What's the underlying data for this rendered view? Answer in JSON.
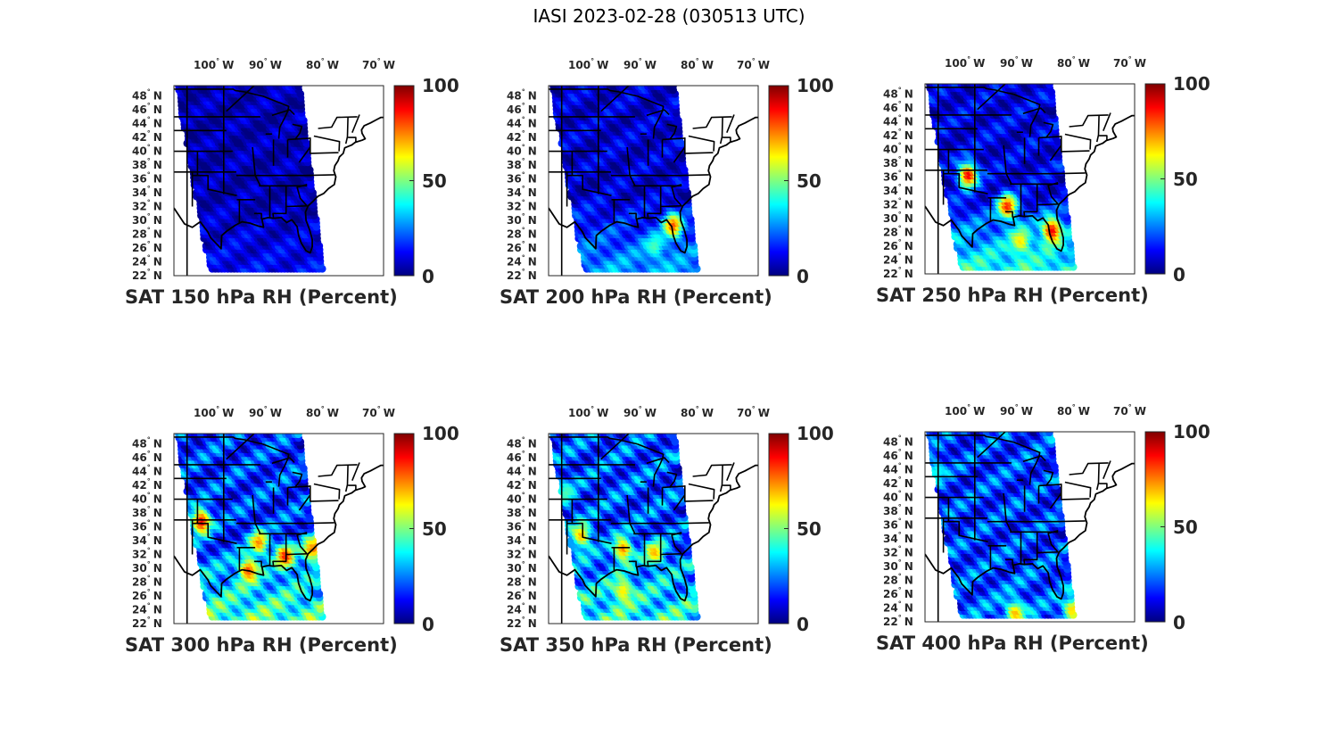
{
  "figure": {
    "title": "IASI 2023-02-28 (030513 UTC)"
  },
  "axes": {
    "lon_ticks": [
      "100",
      "90",
      "80",
      "70"
    ],
    "lon_hemisphere": "W",
    "lat_ticks": [
      "48",
      "46",
      "44",
      "42",
      "40",
      "38",
      "36",
      "34",
      "32",
      "30",
      "28",
      "26",
      "24",
      "22"
    ],
    "lat_hemisphere": "N",
    "degree_symbol": "°"
  },
  "colorbar": {
    "ticks": [
      "100",
      "50",
      "0"
    ],
    "colormap": "jet",
    "colors": [
      "#00007f",
      "#0000ff",
      "#007fff",
      "#00ffff",
      "#7fff7f",
      "#ffff00",
      "#ff7f00",
      "#ff0000",
      "#7f0000"
    ]
  },
  "panels": [
    {
      "title": "SAT 150 hPa RH (Percent)",
      "level_hpa": 150,
      "base_rh": 5,
      "south_rh": 12,
      "features": []
    },
    {
      "title": "SAT 200 hPa RH (Percent)",
      "level_hpa": 200,
      "base_rh": 8,
      "south_rh": 28,
      "features": [
        {
          "lon": -82.5,
          "lat": 29.5,
          "rh": 80
        },
        {
          "lon": -86,
          "lat": 26.5,
          "rh": 45
        }
      ]
    },
    {
      "title": "SAT 250 hPa RH (Percent)",
      "level_hpa": 250,
      "base_rh": 10,
      "south_rh": 40,
      "features": [
        {
          "lon": -98,
          "lat": 36.5,
          "rh": 90
        },
        {
          "lon": -90.5,
          "lat": 32,
          "rh": 85
        },
        {
          "lon": -82,
          "lat": 28.5,
          "rh": 90
        },
        {
          "lon": -88,
          "lat": 27,
          "rh": 65
        }
      ]
    },
    {
      "title": "SAT 300 hPa RH (Percent)",
      "level_hpa": 300,
      "base_rh": 18,
      "south_rh": 45,
      "features": [
        {
          "lon": -101,
          "lat": 37,
          "rh": 90
        },
        {
          "lon": -90,
          "lat": 34,
          "rh": 75
        },
        {
          "lon": -85,
          "lat": 32,
          "rh": 85
        },
        {
          "lon": -80,
          "lat": 33,
          "rh": 75
        },
        {
          "lon": -92,
          "lat": 30,
          "rh": 80
        }
      ]
    },
    {
      "title": "SAT 350 hPa RH (Percent)",
      "level_hpa": 350,
      "base_rh": 20,
      "south_rh": 40,
      "features": [
        {
          "lon": -100,
          "lat": 35,
          "rh": 70
        },
        {
          "lon": -92,
          "lat": 33,
          "rh": 75
        },
        {
          "lon": -86,
          "lat": 32.5,
          "rh": 70
        },
        {
          "lon": -92,
          "lat": 27,
          "rh": 65
        },
        {
          "lon": -103,
          "lat": 41,
          "rh": 45
        }
      ]
    },
    {
      "title": "SAT 400 hPa RH (Percent)",
      "level_hpa": 400,
      "base_rh": 18,
      "south_rh": 22,
      "features": [
        {
          "lon": -89,
          "lat": 23.5,
          "rh": 70
        },
        {
          "lon": -78,
          "lat": 24,
          "rh": 70
        },
        {
          "lon": -104,
          "lat": 44,
          "rh": 40
        }
      ]
    }
  ]
}
